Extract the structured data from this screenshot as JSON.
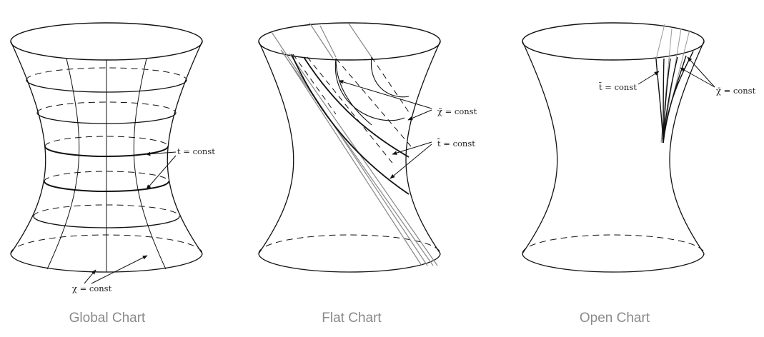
{
  "panels": [
    {
      "caption": "Global Chart",
      "labels": {
        "t_const": "t = const",
        "chi_const": "χ = const"
      }
    },
    {
      "caption": "Flat Chart",
      "labels": {
        "chi_const": "χ̃ = const",
        "t_const": "t̃ = const"
      }
    },
    {
      "caption": "Open Chart",
      "labels": {
        "t_const": "t̄ = const",
        "chi_const": "χ̄ = const"
      }
    }
  ]
}
